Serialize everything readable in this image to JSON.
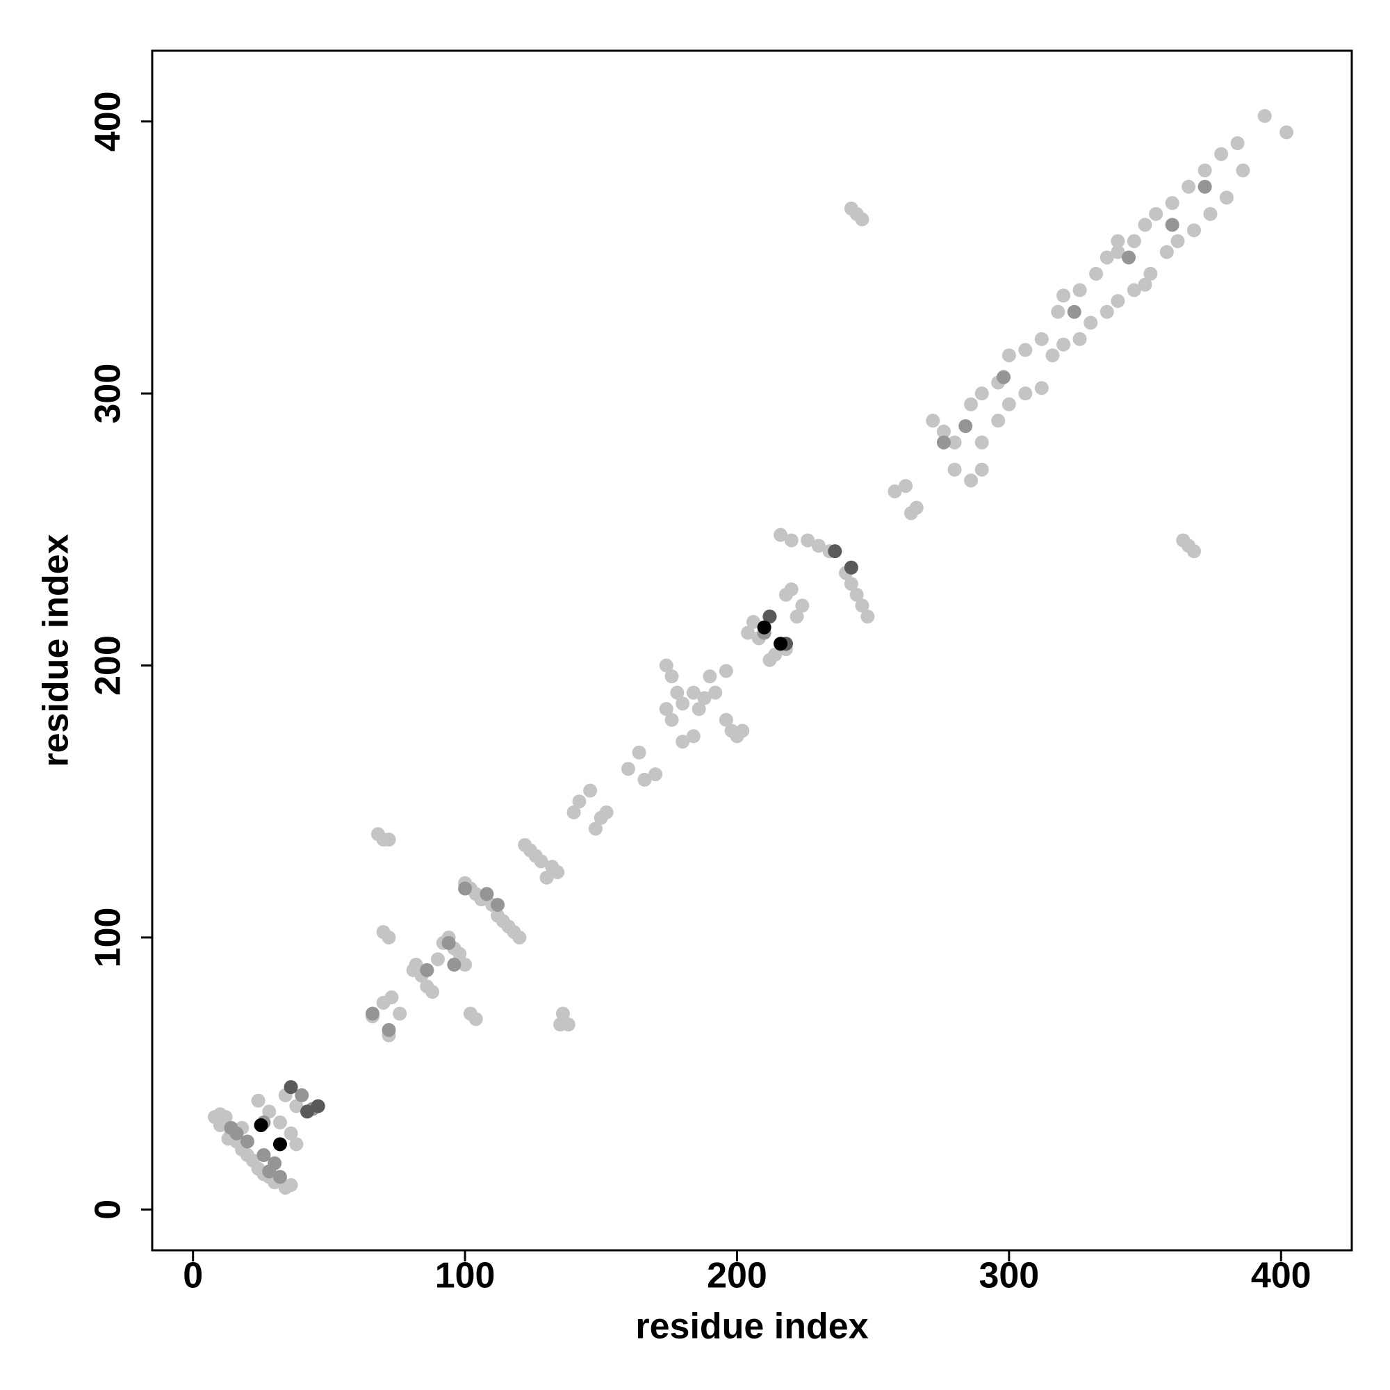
{
  "chart_data": {
    "type": "scatter",
    "xlabel": "residue index",
    "ylabel": "residue index",
    "xlim": [
      -15,
      426
    ],
    "ylim": [
      -15,
      426
    ],
    "xticks": [
      0,
      100,
      200,
      300,
      400
    ],
    "yticks": [
      0,
      100,
      200,
      300,
      400
    ],
    "series": [
      {
        "color": "#c4c4c4",
        "x": [
          8,
          10,
          12,
          14,
          16,
          18,
          20,
          22,
          24,
          26,
          28,
          30,
          34,
          36,
          24,
          28,
          32,
          36,
          38,
          34,
          38,
          10,
          13,
          18,
          66,
          70,
          72,
          76,
          73,
          81,
          82,
          84,
          86,
          88,
          90,
          92,
          94,
          96,
          98,
          100,
          102,
          104,
          100,
          102,
          104,
          106,
          110,
          112,
          114,
          116,
          118,
          120,
          68,
          70,
          72,
          70,
          72,
          136,
          138,
          135,
          122,
          124,
          126,
          128,
          132,
          130,
          134,
          140,
          142,
          146,
          148,
          150,
          152,
          160,
          164,
          166,
          170,
          174,
          176,
          178,
          174,
          176,
          180,
          184,
          186,
          190,
          192,
          188,
          196,
          198,
          200,
          202,
          180,
          184,
          196,
          204,
          206,
          208,
          212,
          214,
          218,
          218,
          220,
          222,
          224,
          216,
          220,
          226,
          230,
          234,
          240,
          242,
          244,
          246,
          248,
          242,
          244,
          246,
          258,
          262,
          264,
          266,
          364,
          366,
          368,
          272,
          276,
          280,
          286,
          290,
          296,
          300,
          306,
          312,
          318,
          320,
          326,
          332,
          336,
          340,
          346,
          350,
          354,
          360,
          366,
          372,
          378,
          384,
          280,
          286,
          290,
          290,
          296,
          300,
          306,
          312,
          316,
          320,
          326,
          330,
          336,
          340,
          346,
          352,
          358,
          362,
          368,
          374,
          380,
          386,
          394,
          402,
          340,
          350
        ],
        "y": [
          34,
          31,
          34,
          28,
          25,
          22,
          20,
          18,
          15,
          13,
          12,
          10,
          8,
          9,
          40,
          36,
          32,
          28,
          24,
          42,
          38,
          35,
          26,
          30,
          71,
          76,
          64,
          72,
          78,
          88,
          90,
          86,
          82,
          80,
          92,
          98,
          100,
          96,
          94,
          90,
          72,
          70,
          120,
          118,
          116,
          114,
          112,
          108,
          106,
          104,
          102,
          100,
          138,
          136,
          136,
          102,
          100,
          72,
          68,
          68,
          134,
          132,
          130,
          128,
          126,
          122,
          124,
          146,
          150,
          154,
          140,
          144,
          146,
          162,
          168,
          158,
          160,
          200,
          196,
          190,
          184,
          180,
          172,
          174,
          184,
          196,
          190,
          188,
          180,
          176,
          174,
          176,
          186,
          190,
          198,
          212,
          216,
          210,
          202,
          204,
          206,
          226,
          228,
          218,
          222,
          248,
          246,
          246,
          244,
          242,
          234,
          230,
          226,
          222,
          218,
          368,
          366,
          364,
          264,
          266,
          256,
          258,
          246,
          244,
          242,
          290,
          286,
          282,
          296,
          300,
          304,
          314,
          316,
          320,
          330,
          336,
          338,
          344,
          350,
          352,
          356,
          362,
          366,
          370,
          376,
          382,
          388,
          392,
          272,
          268,
          272,
          282,
          290,
          296,
          300,
          302,
          314,
          318,
          320,
          326,
          330,
          334,
          338,
          344,
          352,
          356,
          360,
          366,
          372,
          382,
          402,
          396,
          356,
          340
        ]
      },
      {
        "color": "#959595",
        "x": [
          14,
          16,
          20,
          26,
          30,
          28,
          32,
          40,
          44,
          26,
          66,
          72,
          100,
          108,
          112,
          86,
          94,
          96,
          212,
          210,
          218,
          276,
          284,
          298,
          324,
          344,
          360,
          372
        ],
        "y": [
          30,
          28,
          25,
          20,
          17,
          14,
          12,
          42,
          37,
          32,
          72,
          66,
          118,
          116,
          112,
          88,
          98,
          90,
          218,
          212,
          208,
          282,
          288,
          306,
          330,
          350,
          362,
          376
        ]
      },
      {
        "color": "#5a5a5a",
        "x": [
          36,
          46,
          42,
          236,
          242,
          212,
          218
        ],
        "y": [
          45,
          38,
          36,
          242,
          236,
          218,
          208
        ]
      },
      {
        "color": "#000000",
        "x": [
          32,
          25,
          210,
          216
        ],
        "y": [
          24,
          31,
          214,
          208
        ]
      }
    ]
  }
}
